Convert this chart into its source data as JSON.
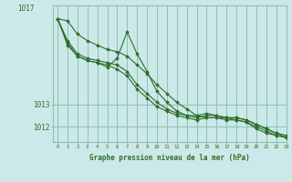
{
  "title": "Graphe pression niveau de la mer (hPa)",
  "bg_color": "#cce8e8",
  "grid_color": "#88c4b0",
  "line_color": "#2d6e2d",
  "marker_color": "#2d6e2d",
  "xlim": [
    -0.5,
    23
  ],
  "ylim": [
    1011.3,
    1017.5
  ],
  "yticks": [
    1012,
    1013
  ],
  "ytick_labels": [
    "1012",
    "1013"
  ],
  "xticks": [
    0,
    1,
    2,
    3,
    4,
    5,
    6,
    7,
    8,
    9,
    10,
    11,
    12,
    13,
    14,
    15,
    16,
    17,
    18,
    19,
    20,
    21,
    22,
    23
  ],
  "series": [
    [
      1016.9,
      1016.8,
      1016.2,
      1015.9,
      1015.7,
      1015.5,
      1015.4,
      1015.2,
      1014.8,
      1014.4,
      1013.9,
      1013.5,
      1013.1,
      1012.8,
      1012.5,
      1012.4,
      1012.4,
      1012.4,
      1012.4,
      1012.3,
      1012.1,
      1011.9,
      1011.7,
      1011.5
    ],
    [
      1016.9,
      1015.7,
      1015.2,
      1015.0,
      1014.9,
      1014.7,
      1015.1,
      1016.3,
      1015.3,
      1014.5,
      1013.6,
      1013.1,
      1012.7,
      1012.5,
      1012.5,
      1012.6,
      1012.5,
      1012.4,
      1012.3,
      1012.2,
      1011.9,
      1011.7,
      1011.6,
      1011.5
    ],
    [
      1016.9,
      1015.9,
      1015.3,
      1015.1,
      1015.0,
      1014.9,
      1014.8,
      1014.5,
      1013.9,
      1013.5,
      1013.1,
      1012.8,
      1012.6,
      1012.5,
      1012.4,
      1012.5,
      1012.5,
      1012.4,
      1012.4,
      1012.3,
      1012.1,
      1011.9,
      1011.7,
      1011.6
    ],
    [
      1016.9,
      1015.8,
      1015.2,
      1015.0,
      1014.9,
      1014.8,
      1014.6,
      1014.3,
      1013.7,
      1013.3,
      1012.9,
      1012.7,
      1012.5,
      1012.4,
      1012.3,
      1012.4,
      1012.4,
      1012.3,
      1012.3,
      1012.2,
      1012.0,
      1011.8,
      1011.6,
      1011.5
    ]
  ]
}
